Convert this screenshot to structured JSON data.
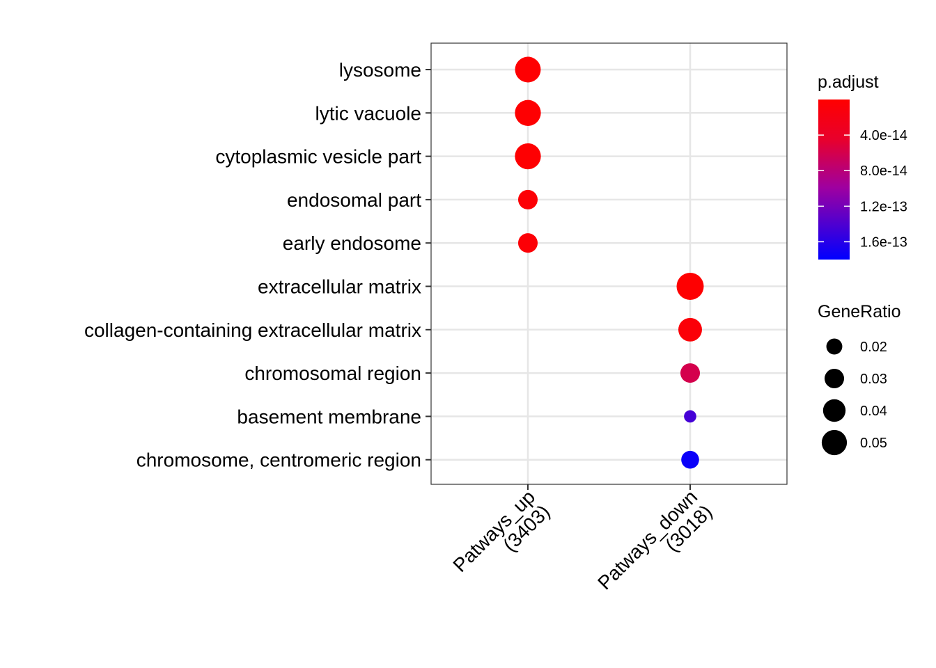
{
  "chart_data": {
    "type": "scatter",
    "categories_y": [
      "lysosome",
      "lytic vacuole",
      "cytoplasmic vesicle part",
      "endosomal part",
      "early endosome",
      "extracellular matrix",
      "collagen-containing extracellular matrix",
      "chromosomal region",
      "basement membrane",
      "chromosome, centromeric region"
    ],
    "categories_x": [
      {
        "line1": "Patways_up",
        "line2": "(3403)"
      },
      {
        "line1": "Patways_down",
        "line2": "(3018)"
      }
    ],
    "points": [
      {
        "x": 0,
        "y": 0,
        "gene_ratio": 0.052,
        "p_adjust": 2e-15
      },
      {
        "x": 0,
        "y": 1,
        "gene_ratio": 0.053,
        "p_adjust": 2e-15
      },
      {
        "x": 0,
        "y": 2,
        "gene_ratio": 0.053,
        "p_adjust": 2e-15
      },
      {
        "x": 0,
        "y": 3,
        "gene_ratio": 0.03,
        "p_adjust": 5e-15
      },
      {
        "x": 0,
        "y": 4,
        "gene_ratio": 0.03,
        "p_adjust": 6e-15
      },
      {
        "x": 1,
        "y": 5,
        "gene_ratio": 0.058,
        "p_adjust": 1e-15
      },
      {
        "x": 1,
        "y": 6,
        "gene_ratio": 0.044,
        "p_adjust": 8e-15
      },
      {
        "x": 1,
        "y": 7,
        "gene_ratio": 0.03,
        "p_adjust": 6e-14
      },
      {
        "x": 1,
        "y": 8,
        "gene_ratio": 0.012,
        "p_adjust": 1.45e-13
      },
      {
        "x": 1,
        "y": 9,
        "gene_ratio": 0.025,
        "p_adjust": 1.75e-13
      }
    ],
    "color_legend": {
      "title": "p.adjust",
      "ticks": [
        {
          "label": "4.0e-14",
          "value": 4e-14
        },
        {
          "label": "8.0e-14",
          "value": 8e-14
        },
        {
          "label": "1.2e-13",
          "value": 1.2e-13
        },
        {
          "label": "1.6e-13",
          "value": 1.6e-13
        }
      ],
      "range": [
        0,
        1.8e-13
      ],
      "low_color": "#FF0000",
      "high_color": "#0000FF"
    },
    "size_legend": {
      "title": "GeneRatio",
      "ticks": [
        {
          "label": "0.02",
          "value": 0.02
        },
        {
          "label": "0.03",
          "value": 0.03
        },
        {
          "label": "0.04",
          "value": 0.04
        },
        {
          "label": "0.05",
          "value": 0.05
        }
      ]
    },
    "grid": true,
    "legend_position": "right"
  }
}
